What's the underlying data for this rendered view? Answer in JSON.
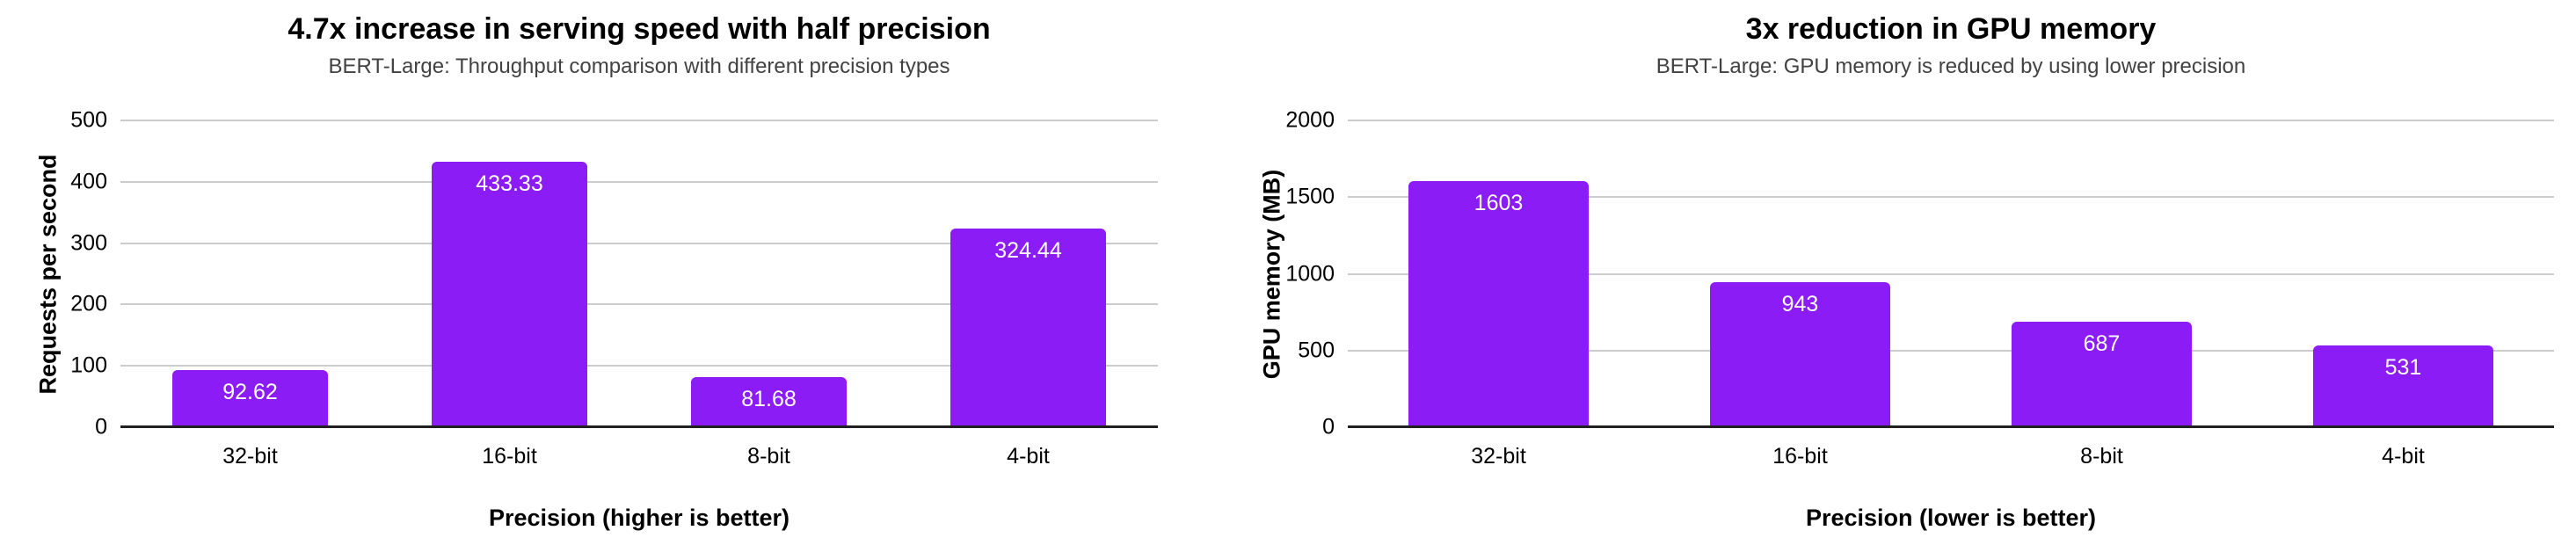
{
  "page": {
    "background": "#FFFFFF"
  },
  "colors": {
    "bar": "#8B1CF6",
    "gridline": "#CCCCCC",
    "axis_line": "#212121",
    "title_text": "#000000",
    "subtitle_text": "#424242",
    "value_label_text": "#FFFFFF"
  },
  "chart_data": [
    {
      "type": "bar",
      "title": "4.7x increase in serving speed with half precision",
      "subtitle": "BERT-Large: Throughput comparison with different precision types",
      "xlabel": "Precision (higher is better)",
      "ylabel": "Requests per second",
      "categories": [
        "32-bit",
        "16-bit",
        "8-bit",
        "4-bit"
      ],
      "values": [
        92.62,
        433.33,
        81.68,
        324.44
      ],
      "value_labels": [
        "92.62",
        "433.33",
        "81.68",
        "324.44"
      ],
      "ylim": [
        0,
        500
      ],
      "yticks": [
        0,
        100,
        200,
        300,
        400,
        500
      ],
      "grid": true,
      "legend": "none",
      "bar_color": "#8B1CF6",
      "value_label_color": "#FFFFFF"
    },
    {
      "type": "bar",
      "title": "3x reduction in GPU memory",
      "subtitle": "BERT-Large: GPU memory is reduced by using lower precision",
      "xlabel": "Precision (lower is better)",
      "ylabel": "GPU memory (MB)",
      "categories": [
        "32-bit",
        "16-bit",
        "8-bit",
        "4-bit"
      ],
      "values": [
        1603,
        943,
        687,
        531
      ],
      "value_labels": [
        "1603",
        "943",
        "687",
        "531"
      ],
      "ylim": [
        0,
        2000
      ],
      "yticks": [
        0,
        500,
        1000,
        1500,
        2000
      ],
      "grid": true,
      "legend": "none",
      "bar_color": "#8B1CF6",
      "value_label_color": "#FFFFFF"
    }
  ]
}
